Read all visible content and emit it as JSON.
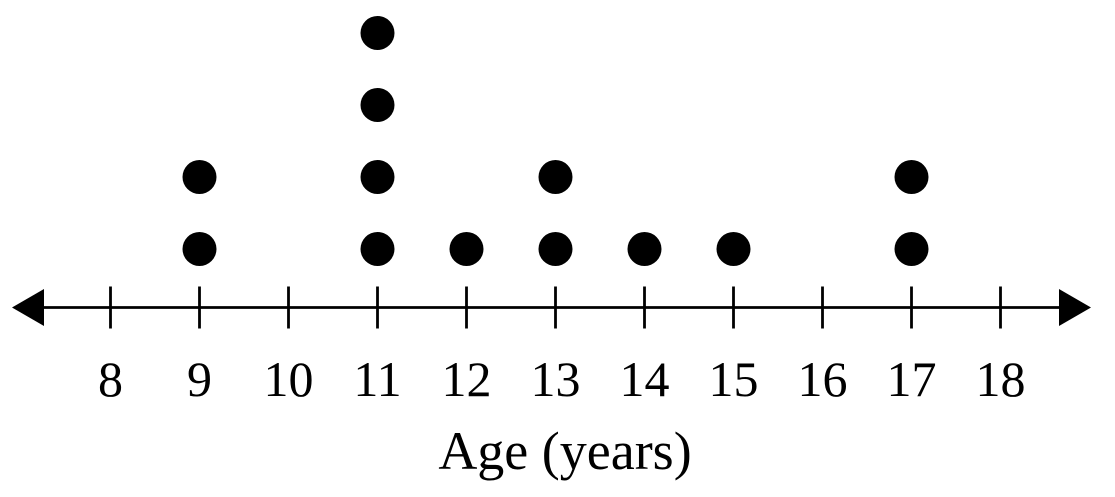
{
  "chart_data": {
    "type": "scatter",
    "subtype": "dot-plot",
    "title": "",
    "xlabel": "Age (years)",
    "ylabel": "",
    "x_ticks": [
      8,
      9,
      10,
      11,
      12,
      13,
      14,
      15,
      16,
      17,
      18
    ],
    "x_tick_labels": [
      "8",
      "9",
      "10",
      "11",
      "12",
      "13",
      "14",
      "15",
      "16",
      "17",
      "18"
    ],
    "distribution": [
      {
        "value": 8,
        "count": 0
      },
      {
        "value": 9,
        "count": 2
      },
      {
        "value": 10,
        "count": 0
      },
      {
        "value": 11,
        "count": 4
      },
      {
        "value": 12,
        "count": 1
      },
      {
        "value": 13,
        "count": 2
      },
      {
        "value": 14,
        "count": 1
      },
      {
        "value": 15,
        "count": 1
      },
      {
        "value": 16,
        "count": 0
      },
      {
        "value": 17,
        "count": 2
      },
      {
        "value": 18,
        "count": 0
      }
    ],
    "points": [
      9,
      9,
      11,
      11,
      11,
      11,
      12,
      13,
      13,
      14,
      15,
      17,
      17
    ],
    "total_points": 13,
    "max_stack": 4,
    "xlim": [
      7.4,
      18.6
    ],
    "axis_arrows": "both-ends",
    "grid": false,
    "legend": false,
    "dot_color": "#000000",
    "axis_color": "#000000",
    "background_color": "#ffffff"
  }
}
